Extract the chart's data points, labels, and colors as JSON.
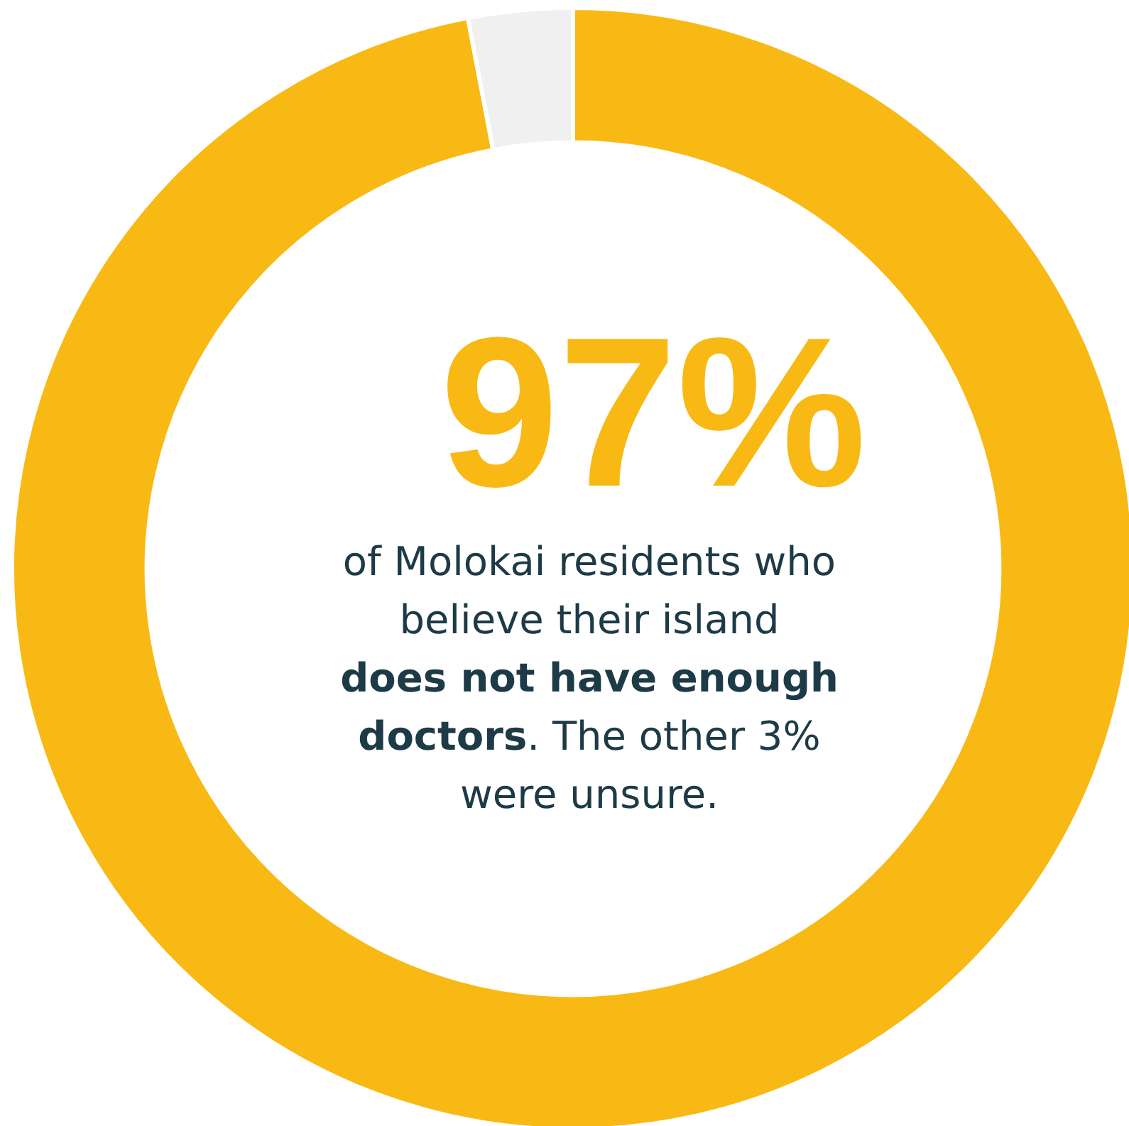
{
  "chart_data": {
    "type": "donut",
    "categories": [
      null,
      null
    ],
    "values": [
      97,
      3
    ],
    "colors": [
      "#f9b914",
      "#f0f0f0"
    ],
    "legend": false,
    "annotations": [
      "97%",
      "of Molokai residents who believe their island",
      "does not have enough doctors",
      ". The other 3% were unsure."
    ]
  }
}
